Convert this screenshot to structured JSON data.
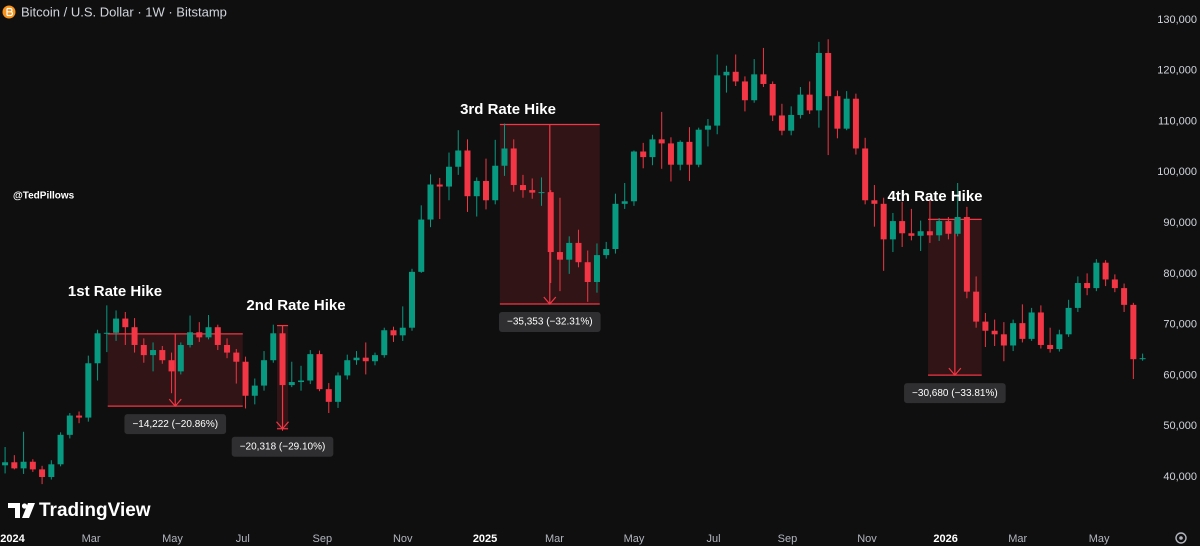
{
  "chart_data": {
    "type": "candlestick",
    "title": "Bitcoin / U.S. Dollar · 1W · Bitstamp",
    "credit": "@TedPillows",
    "brand": "TradingView",
    "up_color": "#089981",
    "down_color": "#f23645",
    "grid": false,
    "ylim": [
      31530,
      133940
    ],
    "xlim": [
      -0.55,
      123.8
    ],
    "yticks": [
      {
        "value": 40000,
        "label": "40,000"
      },
      {
        "value": 50000,
        "label": "50,000"
      },
      {
        "value": 60000,
        "label": "60,000"
      },
      {
        "value": 70000,
        "label": "70,000"
      },
      {
        "value": 80000,
        "label": "80,000"
      },
      {
        "value": 90000,
        "label": "90,000"
      },
      {
        "value": 100000,
        "label": "100,000"
      },
      {
        "value": 110000,
        "label": "110,000"
      },
      {
        "value": 120000,
        "label": "120,000"
      },
      {
        "value": 130000,
        "label": "130,000"
      }
    ],
    "xticks": [
      {
        "value": 0.8,
        "label": "2024"
      },
      {
        "value": 9.3,
        "label": "Mar"
      },
      {
        "value": 18.1,
        "label": "May"
      },
      {
        "value": 25.7,
        "label": "Jul"
      },
      {
        "value": 34.3,
        "label": "Sep"
      },
      {
        "value": 43.0,
        "label": "Nov"
      },
      {
        "value": 51.9,
        "label": "2025"
      },
      {
        "value": 59.4,
        "label": "Mar"
      },
      {
        "value": 68.0,
        "label": "May"
      },
      {
        "value": 76.6,
        "label": "Jul"
      },
      {
        "value": 84.6,
        "label": "Sep"
      },
      {
        "value": 93.2,
        "label": "Nov"
      },
      {
        "value": 101.7,
        "label": "2026"
      },
      {
        "value": 109.5,
        "label": "Mar"
      },
      {
        "value": 118.3,
        "label": "May"
      }
    ],
    "open": [
      42300,
      42900,
      41700,
      43000,
      41500,
      40000,
      42500,
      48300,
      52100,
      51700,
      62400,
      68300,
      68400,
      71200,
      69500,
      66000,
      64000,
      65000,
      63000,
      60800,
      66000,
      68500,
      67500,
      69500,
      66000,
      64500,
      62700,
      56000,
      58000,
      63000,
      68300,
      58100,
      58700,
      59000,
      64200,
      57300,
      54800,
      60000,
      63000,
      63500,
      62800,
      64000,
      68900,
      67900,
      69400,
      80400,
      90700,
      97600,
      97200,
      101100,
      104300,
      95300,
      98300,
      94500,
      101300,
      104700,
      97500,
      96500,
      96000,
      96100,
      84300,
      82800,
      86100,
      82300,
      78400,
      83700,
      84900,
      93800,
      94300,
      104100,
      103000,
      106500,
      105700,
      101500,
      106000,
      101500,
      108400,
      109200,
      119100,
      119800,
      117900,
      114200,
      119300,
      117400,
      111200,
      108200,
      111300,
      115300,
      112200,
      123500,
      115000,
      108600,
      114500,
      104700,
      94500,
      93800,
      86800,
      90400,
      88000,
      87500,
      88400,
      87600,
      90400,
      87900,
      91200,
      76500,
      70600,
      68800,
      68100,
      65900,
      70300,
      67200,
      72400,
      66000,
      65200,
      68100,
      73300,
      78200,
      77200,
      82200,
      78900,
      77200,
      73900,
      63200
    ],
    "high": [
      45900,
      44300,
      48900,
      43500,
      42200,
      43300,
      48800,
      52600,
      52900,
      63900,
      69000,
      73800,
      72800,
      72500,
      71300,
      67300,
      66500,
      65800,
      64500,
      66500,
      71800,
      70500,
      71900,
      70000,
      67300,
      65200,
      63700,
      59400,
      64800,
      70000,
      69900,
      62700,
      61900,
      65000,
      64900,
      58500,
      60600,
      64100,
      64800,
      66500,
      64500,
      69400,
      69600,
      73600,
      81000,
      93500,
      99600,
      98900,
      103900,
      108300,
      106500,
      99000,
      102700,
      106400,
      109600,
      106500,
      99500,
      98800,
      99000,
      96500,
      95000,
      87400,
      88700,
      84600,
      86000,
      86300,
      95800,
      97900,
      104300,
      105800,
      107400,
      111900,
      106900,
      106300,
      108900,
      108800,
      110500,
      123200,
      121000,
      123200,
      118900,
      122300,
      124500,
      117900,
      113500,
      113000,
      116800,
      117900,
      125700,
      126200,
      116100,
      116000,
      115500,
      106800,
      97500,
      95000,
      92000,
      94200,
      92800,
      90500,
      94600,
      91000,
      91200,
      97900,
      93200,
      79500,
      72300,
      71000,
      70500,
      71000,
      74000,
      73300,
      73800,
      69400,
      69000,
      74900,
      79500,
      80100,
      82900,
      82700,
      79900,
      78100,
      74300,
      64300
    ],
    "low": [
      40700,
      41500,
      40600,
      41000,
      38600,
      39500,
      42100,
      47600,
      50600,
      50900,
      59000,
      64600,
      66800,
      66000,
      64500,
      62500,
      60800,
      62300,
      56500,
      60200,
      65500,
      66600,
      67100,
      65000,
      63400,
      58400,
      53500,
      54300,
      57000,
      62500,
      49100,
      57700,
      57000,
      58300,
      56900,
      52600,
      53600,
      59200,
      62100,
      60200,
      62000,
      63500,
      66600,
      66800,
      68800,
      80200,
      89200,
      90800,
      94500,
      99500,
      92200,
      91300,
      92700,
      93700,
      99300,
      96200,
      95000,
      94800,
      93400,
      78200,
      76600,
      80000,
      81300,
      74500,
      76300,
      83000,
      84000,
      92800,
      93400,
      100800,
      101400,
      100700,
      98200,
      100400,
      98300,
      101000,
      105100,
      107500,
      115700,
      117000,
      112000,
      113700,
      116800,
      110100,
      107300,
      107300,
      110600,
      111500,
      108800,
      103400,
      106700,
      108300,
      103500,
      93700,
      89300,
      80600,
      84300,
      85300,
      86600,
      84500,
      86100,
      86500,
      86800,
      87400,
      75200,
      69400,
      65600,
      65800,
      62800,
      64800,
      66500,
      66800,
      65300,
      64500,
      64700,
      67600,
      72500,
      75800,
      76600,
      77600,
      76400,
      72500,
      59300,
      62900
    ],
    "close": [
      42900,
      41700,
      43000,
      41500,
      40000,
      42500,
      48300,
      52100,
      51700,
      62400,
      68300,
      68400,
      71200,
      69500,
      66000,
      64000,
      65000,
      63000,
      60800,
      66000,
      68500,
      67500,
      69500,
      66000,
      64500,
      62700,
      56000,
      58000,
      63000,
      68300,
      58100,
      58700,
      59000,
      64200,
      57300,
      54800,
      60000,
      63000,
      63500,
      62800,
      64000,
      68900,
      67900,
      69400,
      80400,
      90700,
      97600,
      97200,
      101100,
      104300,
      95300,
      98300,
      94500,
      101300,
      104700,
      97500,
      96500,
      96000,
      96100,
      84300,
      82800,
      86100,
      82300,
      78400,
      83700,
      84900,
      93800,
      94300,
      104100,
      103000,
      106500,
      105700,
      101500,
      106000,
      101500,
      108400,
      109200,
      119100,
      119800,
      117900,
      114200,
      119300,
      117400,
      111200,
      108200,
      111300,
      115300,
      112200,
      123500,
      115000,
      108600,
      114500,
      104700,
      94500,
      93800,
      86800,
      90400,
      88000,
      87500,
      88400,
      87600,
      90400,
      87900,
      91200,
      76500,
      70600,
      68800,
      68100,
      65900,
      70300,
      67200,
      72400,
      66000,
      65200,
      68100,
      73300,
      78200,
      77200,
      82200,
      78900,
      77200,
      73900,
      63200,
      63400
    ],
    "annotations": [
      {
        "title": "1st Rate Hike",
        "start": 68180,
        "value": -14222,
        "value_label": "−14,222 (−20.86%)",
        "x": [
          11.1,
          25.7
        ],
        "color": "#f23645"
      },
      {
        "title": "2nd Rate Hike",
        "start": 69821,
        "value": -20318,
        "value_label": "−20,318 (−29.10%)",
        "x": [
          29.4,
          30.6
        ],
        "color": "#f23645"
      },
      {
        "title": "3rd Rate Hike",
        "start": 109418,
        "value": -35353,
        "value_label": "−35,353 (−32.31%)",
        "x": [
          53.5,
          64.3
        ],
        "color": "#f23645"
      },
      {
        "title": "4th Rate Hike",
        "start": 90743,
        "value": -30680,
        "value_label": "−30,680 (−33.81%)",
        "x": [
          99.8,
          105.6
        ],
        "color": "#f23645"
      }
    ]
  }
}
